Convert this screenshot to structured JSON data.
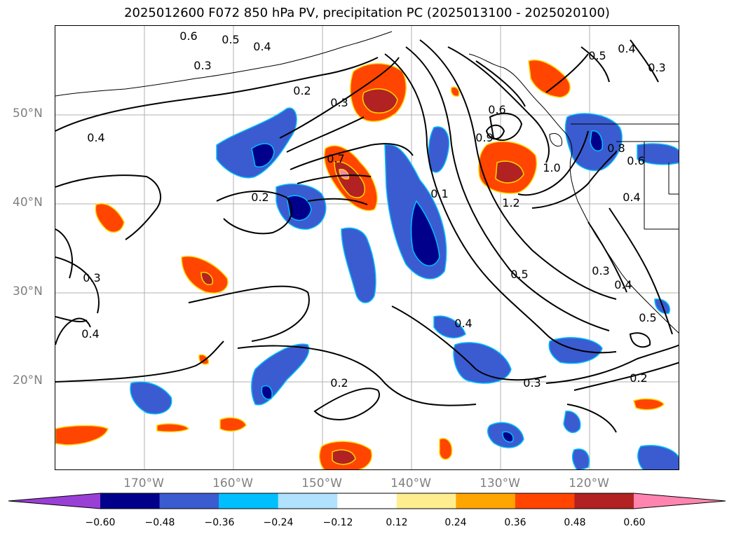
{
  "title": "2025012600 F072 850 hPa PV, precipitation PC (2025013100 - 2025020100)",
  "lat_labels": [
    "50°N",
    "40°N",
    "30°N",
    "20°N"
  ],
  "lon_labels": [
    "170°W",
    "160°W",
    "150°W",
    "140°W",
    "130°W",
    "120°W"
  ],
  "contour_labels": [
    "0.6",
    "0.5",
    "0.4",
    "0.3",
    "0.2",
    "0.4",
    "0.3",
    "0.7",
    "0.2",
    "0.1",
    "0.6",
    "0.9",
    "1.2",
    "1.0",
    "0.8",
    "0.6",
    "0.4",
    "0.5",
    "0.4",
    "0.3",
    "0.3",
    "0.4",
    "0.3",
    "0.2",
    "0.2",
    "0.5",
    "0.4",
    "0.5",
    "0.4",
    "0.3"
  ],
  "colorbar": {
    "ticks": [
      "−0.60",
      "−0.48",
      "−0.36",
      "−0.24",
      "−0.12",
      "0.12",
      "0.24",
      "0.36",
      "0.48",
      "0.60"
    ],
    "colors": [
      "#9a3fd6",
      "#00008b",
      "#3a5cd0",
      "#00bfff",
      "#b0e2ff",
      "#ffffff",
      "#ffee90",
      "#ffa500",
      "#ff4500",
      "#b22222",
      "#ff85b0"
    ]
  }
}
